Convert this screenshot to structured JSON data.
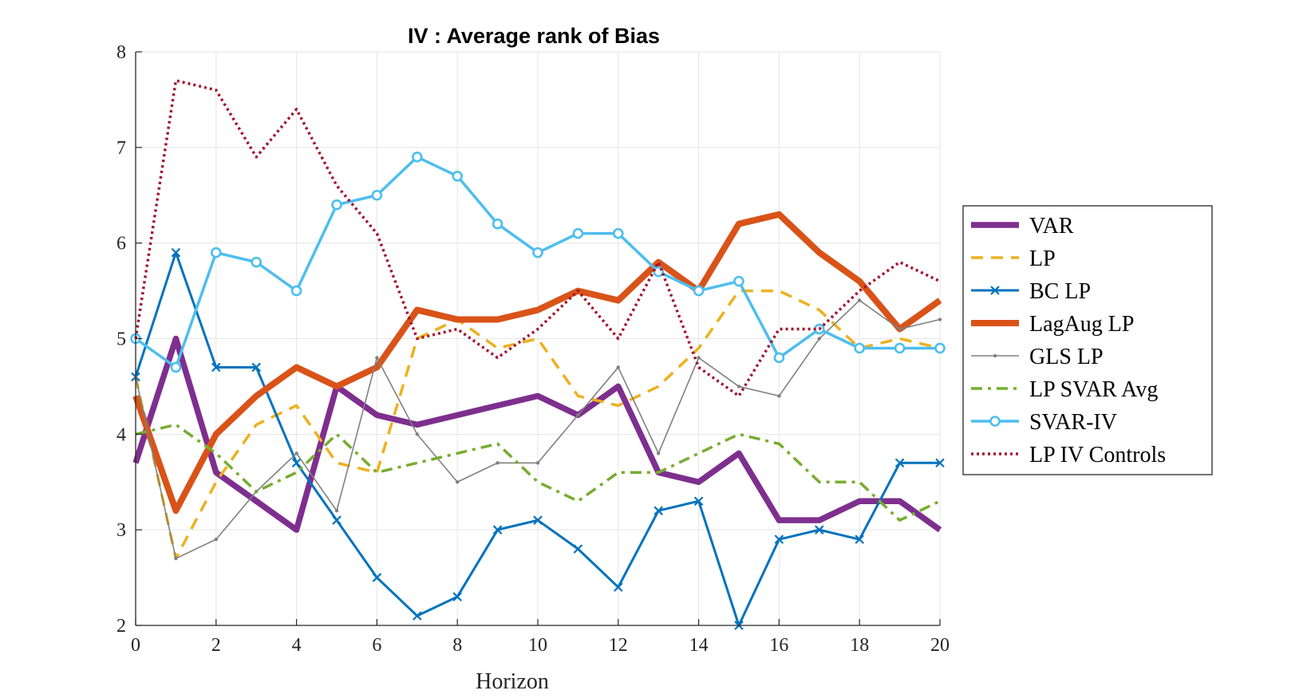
{
  "chart_data": {
    "type": "line",
    "title": "IV : Average rank of Bias",
    "xlabel": "Horizon",
    "ylabel": "",
    "xlim": [
      0,
      20
    ],
    "ylim": [
      2,
      8
    ],
    "xticks": [
      0,
      2,
      4,
      6,
      8,
      10,
      12,
      14,
      16,
      18,
      20
    ],
    "yticks": [
      2,
      3,
      4,
      5,
      6,
      7,
      8
    ],
    "grid": true,
    "legend": "right",
    "x": [
      0,
      1,
      2,
      3,
      4,
      5,
      6,
      7,
      8,
      9,
      10,
      11,
      12,
      13,
      14,
      15,
      16,
      17,
      18,
      19,
      20
    ],
    "series": [
      {
        "name": "VAR",
        "color": "#7E2F8E",
        "style": "solid",
        "marker": "none",
        "values": [
          3.7,
          5.0,
          3.6,
          3.3,
          3.0,
          4.5,
          4.2,
          4.1,
          4.2,
          4.3,
          4.4,
          4.2,
          4.5,
          3.6,
          3.5,
          3.8,
          3.1,
          3.1,
          3.3,
          3.3,
          3.0
        ]
      },
      {
        "name": "LP",
        "color": "#EDB120",
        "style": "dashed",
        "marker": "none",
        "values": [
          4.6,
          2.7,
          3.5,
          4.1,
          4.3,
          3.7,
          3.6,
          5.0,
          5.2,
          4.9,
          5.0,
          4.4,
          4.3,
          4.5,
          4.9,
          5.5,
          5.5,
          5.3,
          4.9,
          5.0,
          4.9
        ]
      },
      {
        "name": "BC LP",
        "color": "#0072BD",
        "style": "solid",
        "marker": "x",
        "values": [
          4.6,
          5.9,
          4.7,
          4.7,
          3.7,
          3.1,
          2.5,
          2.1,
          2.3,
          3.0,
          3.1,
          2.8,
          2.4,
          3.2,
          3.3,
          2.0,
          2.9,
          3.0,
          2.9,
          3.7,
          3.7
        ]
      },
      {
        "name": "LagAug LP",
        "color": "#D95319",
        "style": "solid",
        "marker": "none",
        "values": [
          4.4,
          3.2,
          4.0,
          4.4,
          4.7,
          4.5,
          4.7,
          5.3,
          5.2,
          5.2,
          5.3,
          5.5,
          5.4,
          5.8,
          5.5,
          6.2,
          6.3,
          5.9,
          5.6,
          5.1,
          5.4
        ]
      },
      {
        "name": "GLS LP",
        "color": "#808080",
        "style": "solid",
        "marker": "dot",
        "values": [
          4.6,
          2.7,
          2.9,
          3.4,
          3.8,
          3.2,
          4.8,
          4.0,
          3.5,
          3.7,
          3.7,
          4.2,
          4.7,
          3.8,
          4.8,
          4.5,
          4.4,
          5.0,
          5.4,
          5.1,
          5.2
        ]
      },
      {
        "name": "LP SVAR Avg",
        "color": "#77AC30",
        "style": "dashdot",
        "marker": "none",
        "values": [
          4.0,
          4.1,
          3.8,
          3.4,
          3.6,
          4.0,
          3.6,
          3.7,
          3.8,
          3.9,
          3.5,
          3.3,
          3.6,
          3.6,
          3.8,
          4.0,
          3.9,
          3.5,
          3.5,
          3.1,
          3.3
        ]
      },
      {
        "name": "SVAR-IV",
        "color": "#4DBEEE",
        "style": "solid",
        "marker": "circle",
        "values": [
          5.0,
          4.7,
          5.9,
          5.8,
          5.5,
          6.4,
          6.5,
          6.9,
          6.7,
          6.2,
          5.9,
          6.1,
          6.1,
          5.7,
          5.5,
          5.6,
          4.8,
          5.1,
          4.9,
          4.9,
          4.9
        ]
      },
      {
        "name": "LP IV Controls",
        "color": "#A2142F",
        "style": "dotted",
        "marker": "none",
        "values": [
          5.0,
          7.7,
          7.6,
          6.9,
          7.4,
          6.6,
          6.1,
          5.0,
          5.1,
          4.8,
          5.1,
          5.5,
          5.0,
          5.8,
          4.7,
          4.4,
          5.1,
          5.1,
          5.5,
          5.8,
          5.6
        ]
      }
    ]
  }
}
